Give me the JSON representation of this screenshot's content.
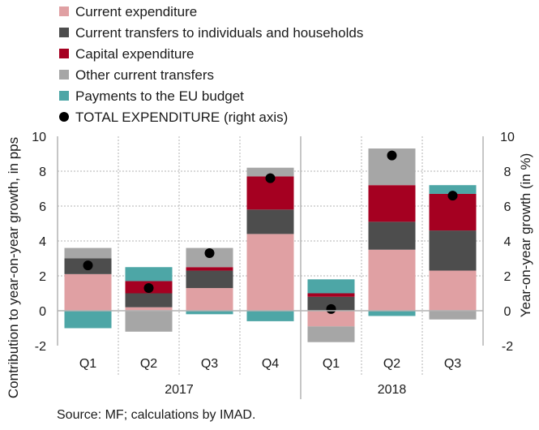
{
  "chart_data": {
    "type": "bar",
    "stacked": true,
    "categories": [
      "Q1",
      "Q2",
      "Q3",
      "Q4",
      "Q1",
      "Q2",
      "Q3"
    ],
    "groups": [
      {
        "label": "2017",
        "count": 4
      },
      {
        "label": "2018",
        "count": 3
      }
    ],
    "series": [
      {
        "name": "Current expenditure",
        "color": "#e0a0a3",
        "values": [
          2.1,
          0.2,
          1.3,
          4.4,
          -0.9,
          3.5,
          2.3
        ]
      },
      {
        "name": "Current transfers to individuals and households",
        "color": "#4d4d4d",
        "values": [
          0.9,
          0.8,
          1.0,
          1.4,
          0.8,
          1.6,
          2.3
        ]
      },
      {
        "name": "Capital expenditure",
        "color": "#a50021",
        "values": [
          0.0,
          0.7,
          0.2,
          1.9,
          0.2,
          2.1,
          2.1
        ]
      },
      {
        "name": "Other current transfers",
        "color": "#a6a6a6",
        "values": [
          0.6,
          -1.2,
          1.1,
          0.5,
          -0.9,
          2.1,
          -0.5
        ]
      },
      {
        "name": "Payments to the EU budget",
        "color": "#4da6a6",
        "values": [
          -1.0,
          0.8,
          -0.2,
          -0.6,
          0.8,
          -0.3,
          0.5
        ]
      },
      {
        "name": "TOTAL EXPENDITURE (right axis)",
        "color": "#000000",
        "type": "scatter",
        "axis": "right",
        "values": [
          2.6,
          1.3,
          3.3,
          7.6,
          0.1,
          8.9,
          6.6
        ]
      }
    ],
    "yleft": {
      "label": "Contribution to year-on-year growth, in pps",
      "ylim": [
        -2,
        10
      ],
      "ticks": [
        "-2",
        "0",
        "2",
        "4",
        "6",
        "8",
        "10"
      ]
    },
    "yright": {
      "label": "Year-on-year growth (in %)",
      "ylim": [
        -2,
        10
      ],
      "ticks": [
        "-2",
        "0",
        "2",
        "4",
        "6",
        "8",
        "10"
      ]
    },
    "grid": true,
    "legend_position": "top-left"
  },
  "source": "Source: MF; calculations by IMAD."
}
